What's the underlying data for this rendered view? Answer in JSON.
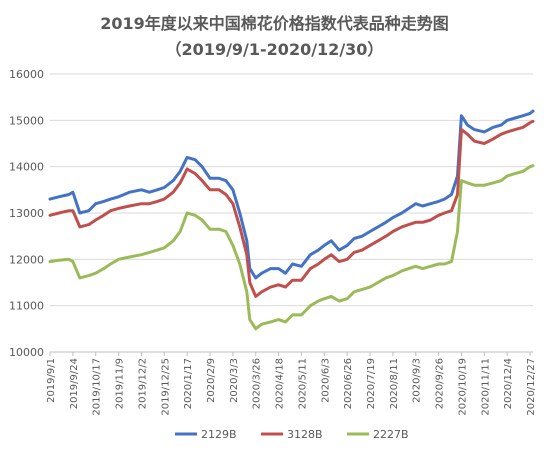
{
  "chart_data": {
    "type": "line",
    "title": "2019年度以来中国棉花价格指数代表品种走势图",
    "subtitle": "（2019/9/1-2020/12/30）",
    "xlabel": "",
    "ylabel": "",
    "ylim": [
      10000,
      16000
    ],
    "yticks": [
      10000,
      11000,
      12000,
      13000,
      14000,
      15000,
      16000
    ],
    "grid": "horizontal",
    "legend_position": "bottom",
    "x_tick_labels": [
      "2019/9/1",
      "2019/9/24",
      "2019/10/17",
      "2019/11/9",
      "2019/12/2",
      "2019/12/25",
      "2020/1/17",
      "2020/2/9",
      "2020/3/3",
      "2020/3/26",
      "2020/4/18",
      "2020/5/11",
      "2020/6/3",
      "2020/6/26",
      "2020/7/19",
      "2020/8/11",
      "2020/9/3",
      "2020/9/26",
      "2020/10/19",
      "2020/11/11",
      "2020/12/4",
      "2020/12/27"
    ],
    "x": [
      "2019/9/1",
      "2019/9/10",
      "2019/9/20",
      "2019/9/24",
      "2019/10/1",
      "2019/10/10",
      "2019/10/17",
      "2019/10/25",
      "2019/11/1",
      "2019/11/9",
      "2019/11/20",
      "2019/12/2",
      "2019/12/10",
      "2019/12/18",
      "2019/12/25",
      "2020/1/3",
      "2020/1/10",
      "2020/1/17",
      "2020/1/25",
      "2020/2/1",
      "2020/2/9",
      "2020/2/18",
      "2020/2/25",
      "2020/3/3",
      "2020/3/10",
      "2020/3/17",
      "2020/3/20",
      "2020/3/26",
      "2020/4/1",
      "2020/4/10",
      "2020/4/18",
      "2020/4/25",
      "2020/5/2",
      "2020/5/11",
      "2020/5/20",
      "2020/5/28",
      "2020/6/3",
      "2020/6/10",
      "2020/6/18",
      "2020/6/26",
      "2020/7/3",
      "2020/7/11",
      "2020/7/19",
      "2020/7/27",
      "2020/8/4",
      "2020/8/11",
      "2020/8/20",
      "2020/8/27",
      "2020/9/3",
      "2020/9/10",
      "2020/9/18",
      "2020/9/26",
      "2020/10/2",
      "2020/10/9",
      "2020/10/15",
      "2020/10/19",
      "2020/10/25",
      "2020/11/1",
      "2020/11/11",
      "2020/11/20",
      "2020/11/28",
      "2020/12/4",
      "2020/12/12",
      "2020/12/20",
      "2020/12/27",
      "2020/12/30"
    ],
    "series": [
      {
        "name": "2129B",
        "color": "#4472C4",
        "values": [
          13300,
          13350,
          13400,
          13450,
          13000,
          13050,
          13200,
          13250,
          13300,
          13350,
          13450,
          13500,
          13450,
          13500,
          13550,
          13700,
          13900,
          14200,
          14150,
          14000,
          13750,
          13750,
          13700,
          13500,
          13000,
          12400,
          11800,
          11600,
          11700,
          11800,
          11800,
          11700,
          11900,
          11850,
          12100,
          12200,
          12300,
          12400,
          12200,
          12300,
          12450,
          12500,
          12600,
          12700,
          12800,
          12900,
          13000,
          13100,
          13200,
          13150,
          13200,
          13250,
          13300,
          13400,
          13800,
          15100,
          14900,
          14800,
          14750,
          14850,
          14900,
          15000,
          15050,
          15100,
          15150,
          15200
        ]
      },
      {
        "name": "3128B",
        "color": "#C0504D",
        "values": [
          12950,
          13000,
          13050,
          13050,
          12700,
          12750,
          12850,
          12950,
          13050,
          13100,
          13150,
          13200,
          13200,
          13250,
          13300,
          13450,
          13650,
          13950,
          13850,
          13700,
          13500,
          13500,
          13400,
          13200,
          12700,
          12100,
          11500,
          11200,
          11300,
          11400,
          11450,
          11400,
          11550,
          11550,
          11800,
          11900,
          12000,
          12100,
          11950,
          12000,
          12150,
          12200,
          12300,
          12400,
          12500,
          12600,
          12700,
          12750,
          12800,
          12800,
          12850,
          12950,
          13000,
          13050,
          13400,
          14800,
          14700,
          14550,
          14500,
          14600,
          14700,
          14750,
          14800,
          14850,
          14950,
          14980
        ]
      },
      {
        "name": "2227B",
        "color": "#9BBB59",
        "values": [
          11950,
          11980,
          12000,
          11950,
          11600,
          11650,
          11700,
          11800,
          11900,
          12000,
          12050,
          12100,
          12150,
          12200,
          12250,
          12400,
          12600,
          13000,
          12950,
          12850,
          12650,
          12650,
          12600,
          12300,
          11900,
          11300,
          10700,
          10500,
          10600,
          10650,
          10700,
          10650,
          10800,
          10800,
          11000,
          11100,
          11150,
          11200,
          11100,
          11150,
          11300,
          11350,
          11400,
          11500,
          11600,
          11650,
          11750,
          11800,
          11850,
          11800,
          11850,
          11900,
          11900,
          11950,
          12600,
          13700,
          13650,
          13600,
          13600,
          13650,
          13700,
          13800,
          13850,
          13900,
          14000,
          14020
        ]
      }
    ]
  }
}
